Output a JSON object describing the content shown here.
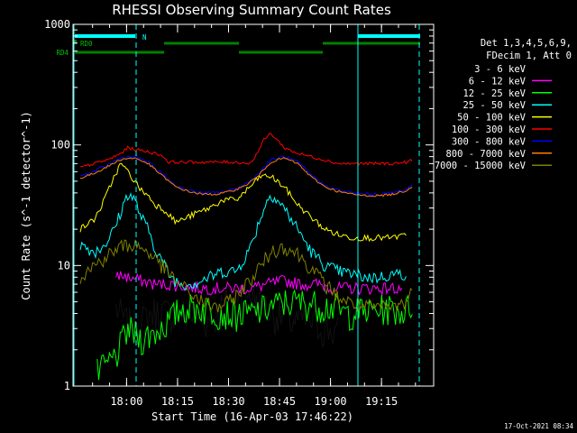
{
  "chart_data": {
    "type": "line",
    "title": "RHESSI Observing Summary Count Rates",
    "xlabel": "Start Time (16-Apr-03 17:46:22)",
    "ylabel": "Count Rate (s^-1 detector^-1)",
    "y_scale": "log",
    "ylim": [
      1,
      1000
    ],
    "xlim_minutes_after_start": [
      0,
      100
    ],
    "x_ticks": [
      "18:00",
      "18:15",
      "18:30",
      "18:45",
      "19:00",
      "19:15"
    ],
    "y_ticks": [
      "1",
      "10",
      "100",
      "1000"
    ],
    "grid": false,
    "legend_position": "right",
    "legend_header": [
      "Det 1,3,4,5,6,9,",
      "FDecim 1, Att 0"
    ],
    "timestamp": "17-Oct-2021 08:34",
    "flag_labels": [
      "N",
      "RD0",
      "RD4"
    ],
    "series": [
      {
        "name": "3 - 6 keV",
        "color": "#000000",
        "t": [
          10.5,
          13,
          16,
          19,
          22,
          27,
          32,
          38,
          44,
          50,
          56,
          62,
          67,
          72,
          76.5
        ],
        "values": [
          4.5,
          3.5,
          3.2,
          3.6,
          4.2,
          4.0,
          4.0,
          3.5,
          5.5,
          6,
          4.2,
          3.5,
          3.5,
          3.0,
          2.8
        ]
      },
      {
        "name": "6 - 12 keV",
        "color": "#ff00ff",
        "t": [
          10.5,
          14,
          18,
          22,
          26,
          30,
          35,
          40,
          45,
          50,
          55,
          60,
          65,
          70,
          75,
          80,
          85,
          90,
          95
        ],
        "values": [
          8.5,
          8,
          7.5,
          7,
          7,
          6.8,
          6.5,
          6.5,
          6.5,
          6.5,
          7,
          7.5,
          7,
          7,
          6.5,
          6.5,
          6.5,
          6.5,
          6.5
        ]
      },
      {
        "name": "12 - 25 keV",
        "color": "#00ff00",
        "t": [
          5,
          8,
          10.5,
          14,
          18,
          22,
          26,
          30,
          35,
          40,
          45,
          50,
          55,
          60,
          65,
          70,
          75,
          78,
          82,
          86,
          90,
          95,
          98
        ],
        "values": [
          1.3,
          1.5,
          1.8,
          3,
          2.5,
          2.8,
          3.5,
          4.5,
          4.5,
          4.2,
          4,
          4,
          4.5,
          5,
          5,
          4.8,
          4.5,
          4,
          4.2,
          4.2,
          4.5,
          4.2,
          4.8
        ]
      },
      {
        "name": "25 - 50 keV",
        "color": "#00ffff",
        "t": [
          0,
          2,
          4,
          6,
          8,
          10,
          12,
          14,
          16,
          18,
          20,
          22,
          24,
          26,
          28,
          30,
          34,
          38,
          42,
          46,
          50,
          53,
          56,
          60,
          64,
          68,
          72,
          76,
          80,
          84,
          88,
          92,
          96
        ],
        "values": [
          15,
          14,
          13,
          14,
          16,
          20,
          28,
          40,
          35,
          25,
          20,
          14,
          11,
          8.5,
          7.5,
          7,
          7.2,
          8,
          9,
          9,
          14,
          25,
          40,
          30,
          20,
          13,
          10,
          9,
          8.5,
          8,
          8,
          8.5,
          8.5
        ]
      },
      {
        "name": "50 - 100 keV",
        "color": "#ffff00",
        "t": [
          0,
          2,
          4,
          6,
          8,
          10,
          12,
          14,
          16,
          18,
          20,
          22,
          24,
          26,
          28,
          30,
          34,
          38,
          42,
          46,
          50,
          53,
          56,
          60,
          64,
          68,
          72,
          76,
          80,
          84,
          88,
          92,
          96
        ],
        "values": [
          20,
          22,
          24,
          30,
          40,
          55,
          70,
          60,
          50,
          42,
          38,
          32,
          30,
          27,
          23,
          24,
          27,
          30,
          35,
          35,
          45,
          55,
          55,
          45,
          32,
          25,
          20,
          18,
          17,
          17,
          17,
          17,
          18
        ]
      },
      {
        "name": "100 - 300 keV",
        "color": "#ff0000",
        "t": [
          0,
          4,
          8,
          12,
          14,
          16,
          20,
          24,
          26,
          28,
          30,
          34,
          38,
          42,
          46,
          50,
          52,
          54,
          56,
          58,
          60,
          64,
          68,
          72,
          76,
          80,
          84,
          88,
          92,
          96,
          98
        ],
        "values": [
          65,
          70,
          75,
          85,
          95,
          92,
          88,
          82,
          72,
          72,
          72,
          72,
          72,
          72,
          72,
          70,
          85,
          110,
          125,
          110,
          95,
          85,
          80,
          75,
          70,
          70,
          70,
          70,
          70,
          72,
          75
        ]
      },
      {
        "name": "300 - 800 keV",
        "color": "#0000ff",
        "t": [
          0,
          4,
          8,
          12,
          16,
          20,
          24,
          28,
          32,
          36,
          40,
          44,
          48,
          52,
          56,
          60,
          64,
          68,
          72,
          76,
          80,
          84,
          88,
          92,
          96,
          98
        ],
        "values": [
          55,
          60,
          68,
          78,
          80,
          72,
          58,
          46,
          42,
          40,
          40,
          42,
          46,
          56,
          75,
          80,
          72,
          56,
          46,
          42,
          40,
          39,
          39,
          40,
          43,
          47
        ]
      },
      {
        "name": "800 - 7000 keV",
        "color": "#ff8000",
        "t": [
          0,
          4,
          8,
          12,
          16,
          20,
          24,
          28,
          32,
          36,
          40,
          44,
          48,
          52,
          56,
          60,
          64,
          68,
          72,
          76,
          80,
          84,
          88,
          92,
          96,
          98
        ],
        "values": [
          53,
          58,
          66,
          76,
          78,
          70,
          56,
          45,
          41,
          39,
          39,
          41,
          45,
          54,
          72,
          78,
          70,
          54,
          45,
          41,
          39,
          38,
          38,
          39,
          42,
          46
        ]
      },
      {
        "name": "7000 - 15000 keV",
        "color": "#808000",
        "t": [
          0,
          4,
          8,
          12,
          16,
          20,
          24,
          28,
          32,
          36,
          40,
          44,
          48,
          52,
          56,
          60,
          64,
          68,
          72,
          76,
          80,
          84,
          88,
          92,
          96,
          98
        ],
        "values": [
          8,
          10,
          12,
          14.5,
          15,
          13,
          10,
          7.5,
          6,
          5,
          4.5,
          5,
          6.5,
          9,
          13,
          14.5,
          12.5,
          9.5,
          7,
          5.5,
          4.8,
          4.5,
          4.5,
          4.5,
          5,
          6.5
        ]
      }
    ]
  }
}
